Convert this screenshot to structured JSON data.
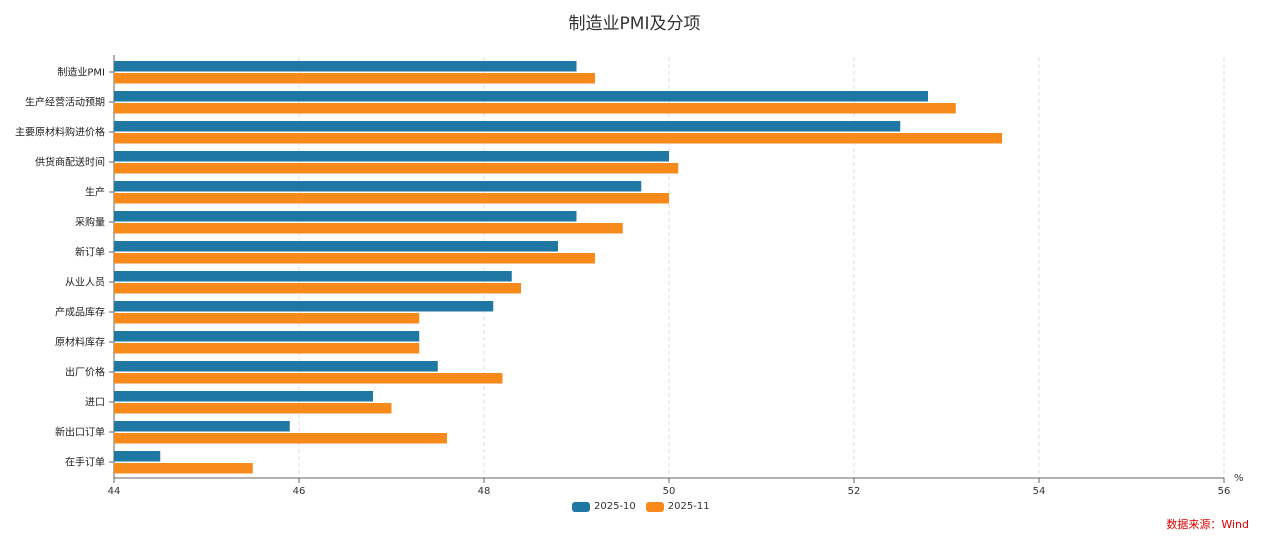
{
  "chart_data": {
    "type": "bar",
    "orientation": "horizontal",
    "title": "制造业PMI及分项",
    "xlabel": "%",
    "xlim": [
      44,
      56
    ],
    "xticks": [
      44,
      46,
      48,
      50,
      52,
      54,
      56
    ],
    "grid": "vertical dashed",
    "legend": "bottom",
    "categories": [
      "制造业PMI",
      "生产经营活动预期",
      "主要原材料购进价格",
      "供货商配送时间",
      "生产",
      "采购量",
      "新订单",
      "从业人员",
      "产成品库存",
      "原材料库存",
      "出厂价格",
      "进口",
      "新出口订单",
      "在手订单"
    ],
    "series": [
      {
        "name": "2025-10",
        "color": "#1f77a4",
        "values": [
          49.0,
          52.8,
          52.5,
          50.0,
          49.7,
          49.0,
          48.8,
          48.3,
          48.1,
          47.3,
          47.5,
          46.8,
          45.9,
          44.5
        ]
      },
      {
        "name": "2025-11",
        "color": "#f88a1c",
        "values": [
          49.2,
          53.1,
          53.6,
          50.1,
          50.0,
          49.5,
          49.2,
          48.4,
          47.3,
          47.3,
          48.2,
          47.0,
          47.6,
          45.5
        ]
      }
    ]
  },
  "source": "数据来源：Wind"
}
